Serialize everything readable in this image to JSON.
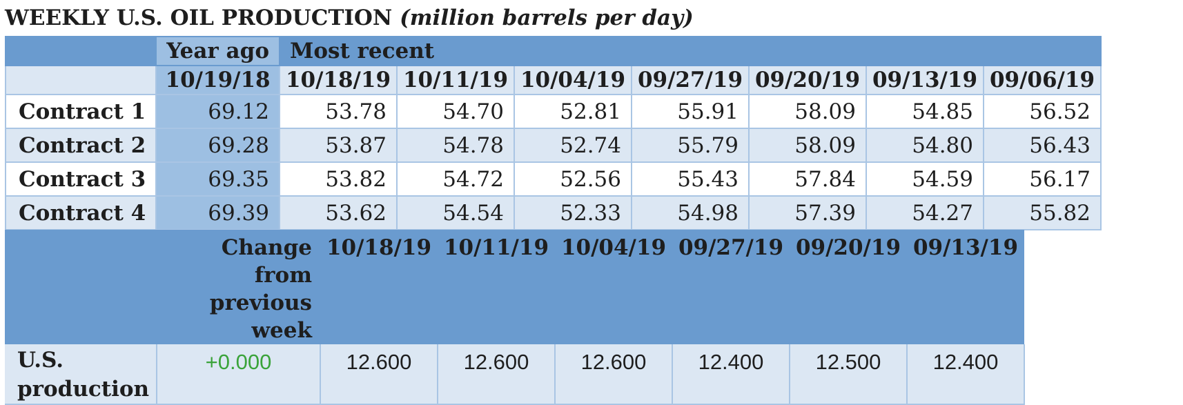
{
  "title": {
    "main": "WEEKLY U.S. OIL PRODUCTION",
    "sub": "(million barrels per day)"
  },
  "contracts_table": {
    "group_headers": [
      "Year ago",
      "Most recent"
    ],
    "dates": [
      "10/19/18",
      "10/18/19",
      "10/11/19",
      "10/04/19",
      "09/27/19",
      "09/20/19",
      "09/13/19",
      "09/06/19"
    ],
    "rows": [
      {
        "label": "Contract 1",
        "values": [
          "69.12",
          "53.78",
          "54.70",
          "52.81",
          "55.91",
          "58.09",
          "54.85",
          "56.52"
        ]
      },
      {
        "label": "Contract 2",
        "values": [
          "69.28",
          "53.87",
          "54.78",
          "52.74",
          "55.79",
          "58.09",
          "54.80",
          "56.43"
        ]
      },
      {
        "label": "Contract 3",
        "values": [
          "69.35",
          "53.82",
          "54.72",
          "52.56",
          "55.43",
          "57.84",
          "54.59",
          "56.17"
        ]
      },
      {
        "label": "Contract 4",
        "values": [
          "69.39",
          "53.62",
          "54.54",
          "52.33",
          "54.98",
          "57.39",
          "54.27",
          "55.82"
        ]
      }
    ]
  },
  "production_table": {
    "change_header": "Change from previous week",
    "dates": [
      "10/18/19",
      "10/11/19",
      "10/04/19",
      "09/27/19",
      "09/20/19",
      "09/13/19"
    ],
    "row": {
      "label": "U.S. production",
      "change": "+0.000",
      "values": [
        "12.600",
        "12.600",
        "12.600",
        "12.400",
        "12.500",
        "12.400"
      ]
    }
  },
  "colors": {
    "header_blue": "#6a9bcf",
    "year_ago_blue": "#9dbfe2",
    "light_row": "#dce7f3",
    "positive_change": "#3aa33a"
  }
}
